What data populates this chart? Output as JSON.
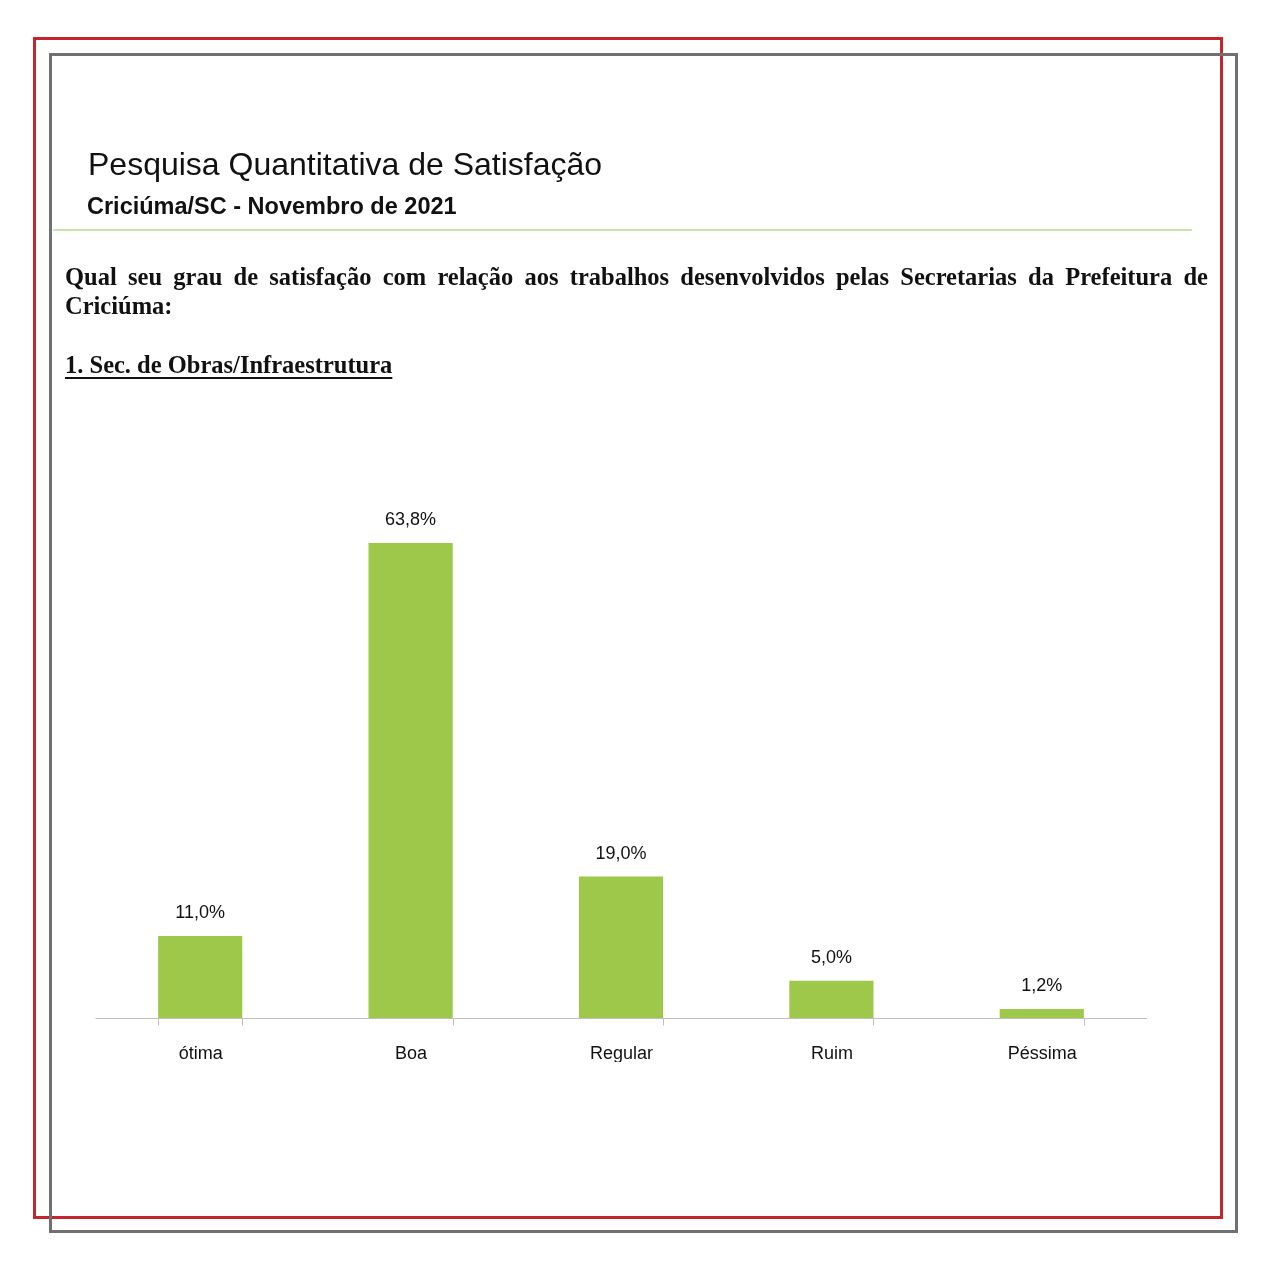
{
  "chart_data": {
    "type": "bar",
    "title": "Pesquisa Quantitativa de Satisfação",
    "subtitle": "Criciúma/SC - Novembro de 2021",
    "annotations": [
      "Qual seu grau de satisfação com relação aos trabalhos desenvolvidos pelas Secretarias da Prefeitura de Criciúma:",
      "1. Sec. de Obras/Infraestrutura"
    ],
    "categories": [
      "ótima",
      "Boa",
      "Regular",
      "Ruim",
      "Péssima"
    ],
    "values": [
      11.0,
      63.8,
      19.0,
      5.0,
      1.2
    ],
    "value_labels": [
      "11,0%",
      "63,8%",
      "19,0%",
      "5,0%",
      "1,2%"
    ],
    "color": "#9dc84a"
  }
}
